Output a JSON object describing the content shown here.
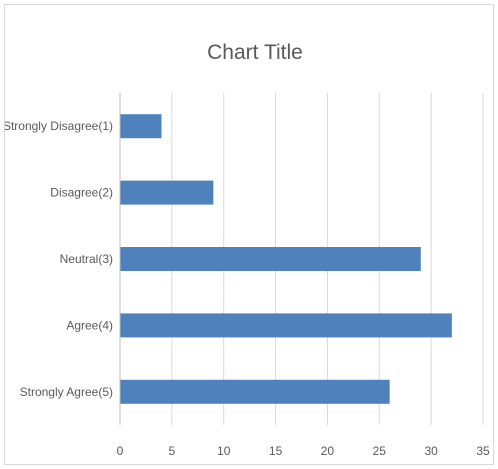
{
  "chart_data": {
    "type": "bar",
    "orientation": "horizontal",
    "title": "Chart Title",
    "categories": [
      "Strongly Disagree(1)",
      "Disagree(2)",
      "Neutral(3)",
      "Agree(4)",
      "Strongly Agree(5)"
    ],
    "values": [
      4,
      9,
      29,
      32,
      26
    ],
    "xlim": [
      0,
      35
    ],
    "x_ticks": [
      0,
      5,
      10,
      15,
      20,
      25,
      30,
      35
    ],
    "grid": "vertical",
    "legend": "none",
    "bar_color": "#4f81bd"
  }
}
